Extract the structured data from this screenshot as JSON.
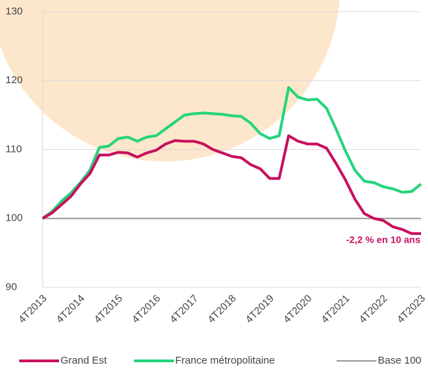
{
  "chart_data": {
    "type": "line",
    "categories": [
      "4T2013",
      null,
      null,
      null,
      "4T2014",
      null,
      null,
      null,
      "4T2015",
      null,
      null,
      null,
      "4T2016",
      null,
      null,
      null,
      "4T2017",
      null,
      null,
      null,
      "4T2018",
      null,
      null,
      null,
      "4T2019",
      null,
      null,
      null,
      "4T2020",
      null,
      null,
      null,
      "4T2021",
      null,
      null,
      null,
      "4T2022",
      null,
      null,
      null,
      "4T2023"
    ],
    "series": [
      {
        "name": "Grand Est",
        "color": "#c8105f",
        "values": [
          100,
          100.8,
          102,
          103.2,
          105,
          106.5,
          109.2,
          109.2,
          109.6,
          109.5,
          108.9,
          109.5,
          109.9,
          110.8,
          111.3,
          111.2,
          111.2,
          110.8,
          110,
          109.5,
          109,
          108.8,
          107.8,
          107.2,
          105.8,
          105.8,
          112,
          111.2,
          110.8,
          110.8,
          110.2,
          108,
          105.6,
          102.8,
          100.7,
          100,
          99.7,
          98.8,
          98.4,
          97.8,
          97.8
        ]
      },
      {
        "name": "France métropolitaine",
        "color": "#25d47a",
        "values": [
          100,
          101,
          102.5,
          103.7,
          105.2,
          107,
          110.3,
          110.5,
          111.6,
          111.8,
          111.2,
          111.8,
          112,
          113,
          114,
          115,
          115.2,
          115.3,
          115.2,
          115.1,
          114.9,
          114.8,
          113.8,
          112.3,
          111.6,
          112,
          119,
          117.6,
          117.2,
          117.3,
          116,
          113,
          109.8,
          107,
          105.4,
          105.2,
          104.6,
          104.3,
          103.8,
          103.9,
          105
        ]
      },
      {
        "name": "Base 100",
        "color": "#999999",
        "values": [
          100,
          100,
          100,
          100,
          100,
          100,
          100,
          100,
          100,
          100,
          100,
          100,
          100,
          100,
          100,
          100,
          100,
          100,
          100,
          100,
          100,
          100,
          100,
          100,
          100,
          100,
          100,
          100,
          100,
          100,
          100,
          100,
          100,
          100,
          100,
          100,
          100,
          100,
          100,
          100,
          100
        ]
      }
    ],
    "annotation": "-2,2 % en 10 ans",
    "ylim": [
      90,
      130
    ],
    "yticks": [
      90,
      100,
      110,
      120,
      130
    ],
    "grid": true
  }
}
